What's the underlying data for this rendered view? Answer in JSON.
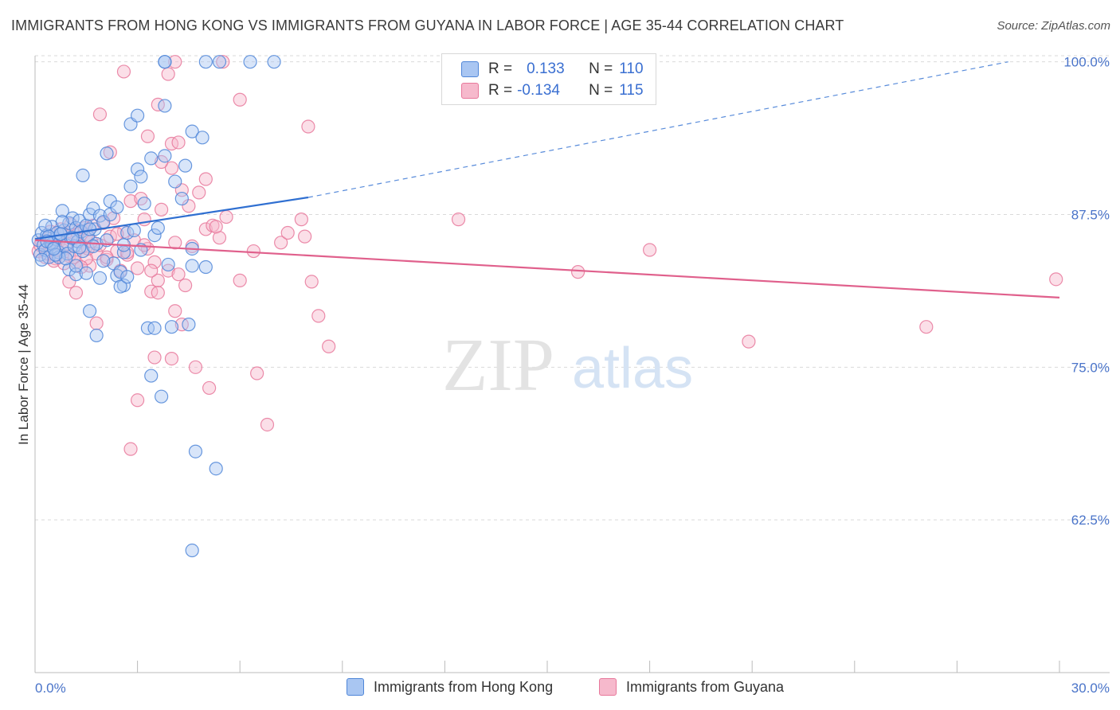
{
  "title": "IMMIGRANTS FROM HONG KONG VS IMMIGRANTS FROM GUYANA IN LABOR FORCE | AGE 35-44 CORRELATION CHART",
  "source": "Source: ZipAtlas.com",
  "watermark": {
    "zip": "ZIP",
    "atlas": "atlas"
  },
  "legend": {
    "r_label": "R =",
    "n_label": "N =",
    "hong_kong": {
      "r": "0.133",
      "n": "110"
    },
    "guyana": {
      "r": "-0.134",
      "n": "115"
    }
  },
  "colors": {
    "hong_kong_fill": "#a9c6f2",
    "hong_kong_stroke": "#4f86d8",
    "hong_kong_line": "#2f6fd1",
    "guyana_fill": "#f6b9cc",
    "guyana_stroke": "#e8789b",
    "guyana_line": "#e0608c",
    "grid": "#d9d9d9",
    "tick_text": "#4a74c9"
  },
  "chart_data": {
    "type": "scatter",
    "title": "IMMIGRANTS FROM HONG KONG VS IMMIGRANTS FROM GUYANA IN LABOR FORCE | AGE 35-44 CORRELATION CHART",
    "xlabel": "",
    "ylabel": "In Labor Force | Age 35-44",
    "xlim": [
      0,
      30
    ],
    "ylim": [
      50,
      100.5
    ],
    "x_tick_labels": [
      "0.0%",
      "30.0%"
    ],
    "y_ticks": [
      62.5,
      75.0,
      87.5,
      100.0
    ],
    "y_tick_labels": [
      "62.5%",
      "75.0%",
      "87.5%",
      "100.0%"
    ],
    "grid": true,
    "legend_position": "top-center",
    "series": [
      {
        "name": "Immigrants from Hong Kong",
        "r": 0.133,
        "n": 110,
        "trend": {
          "x0": 0,
          "y0": 85.5,
          "x1": 8,
          "y1": 88.9,
          "dashed_to_x": 28.5,
          "dashed_to_y": 100.0
        },
        "points": [
          [
            0.1,
            85.4
          ],
          [
            0.15,
            84.2
          ],
          [
            0.2,
            86.0
          ],
          [
            0.25,
            85.0
          ],
          [
            0.3,
            84.6
          ],
          [
            0.35,
            85.8
          ],
          [
            0.4,
            84.0
          ],
          [
            0.45,
            85.2
          ],
          [
            0.5,
            86.5
          ],
          [
            0.55,
            84.8
          ],
          [
            0.6,
            85.5
          ],
          [
            0.65,
            86.0
          ],
          [
            0.7,
            84.4
          ],
          [
            0.75,
            85.9
          ],
          [
            0.8,
            87.8
          ],
          [
            0.85,
            86.2
          ],
          [
            0.9,
            85.0
          ],
          [
            0.95,
            84.3
          ],
          [
            1.0,
            86.8
          ],
          [
            1.05,
            85.6
          ],
          [
            1.1,
            87.2
          ],
          [
            1.15,
            84.9
          ],
          [
            1.2,
            86.4
          ],
          [
            1.25,
            85.3
          ],
          [
            1.3,
            87.0
          ],
          [
            1.35,
            86.1
          ],
          [
            1.4,
            84.5
          ],
          [
            1.5,
            86.6
          ],
          [
            1.55,
            85.7
          ],
          [
            1.6,
            87.5
          ],
          [
            1.7,
            88.0
          ],
          [
            1.75,
            86.3
          ],
          [
            1.8,
            85.1
          ],
          [
            1.9,
            87.4
          ],
          [
            2.0,
            86.9
          ],
          [
            2.1,
            85.4
          ],
          [
            2.2,
            88.6
          ],
          [
            2.3,
            83.5
          ],
          [
            2.4,
            82.5
          ],
          [
            2.5,
            82.8
          ],
          [
            2.6,
            84.4
          ],
          [
            2.7,
            86.0
          ],
          [
            2.8,
            89.8
          ],
          [
            2.9,
            86.2
          ],
          [
            3.0,
            91.2
          ],
          [
            3.1,
            90.6
          ],
          [
            3.2,
            88.4
          ],
          [
            3.4,
            92.1
          ],
          [
            3.5,
            85.8
          ],
          [
            3.6,
            86.4
          ],
          [
            3.8,
            92.3
          ],
          [
            3.9,
            83.4
          ],
          [
            4.1,
            90.2
          ],
          [
            4.3,
            88.8
          ],
          [
            4.4,
            91.5
          ],
          [
            4.6,
            94.3
          ],
          [
            4.9,
            93.8
          ],
          [
            5.0,
            100.0
          ],
          [
            5.0,
            83.2
          ],
          [
            5.4,
            100.0
          ],
          [
            6.3,
            100.0
          ],
          [
            7.0,
            100.0
          ],
          [
            3.8,
            100.0
          ],
          [
            3.8,
            100.0
          ],
          [
            1.4,
            90.7
          ],
          [
            2.1,
            92.5
          ],
          [
            2.8,
            94.9
          ],
          [
            3.0,
            95.6
          ],
          [
            3.8,
            96.4
          ],
          [
            3.3,
            78.2
          ],
          [
            3.4,
            74.3
          ],
          [
            3.7,
            72.6
          ],
          [
            3.5,
            78.2
          ],
          [
            4.0,
            78.3
          ],
          [
            4.5,
            78.5
          ],
          [
            1.6,
            79.6
          ],
          [
            1.8,
            77.6
          ],
          [
            4.7,
            68.1
          ],
          [
            5.3,
            66.7
          ],
          [
            4.6,
            60.0
          ],
          [
            1.0,
            83.0
          ],
          [
            1.2,
            82.6
          ],
          [
            1.9,
            82.3
          ],
          [
            2.0,
            83.7
          ],
          [
            2.6,
            81.7
          ],
          [
            2.5,
            81.6
          ],
          [
            2.7,
            82.4
          ],
          [
            3.1,
            84.6
          ],
          [
            4.6,
            83.3
          ],
          [
            4.6,
            84.7
          ],
          [
            0.3,
            86.6
          ],
          [
            0.5,
            85.1
          ],
          [
            0.7,
            84.0
          ],
          [
            0.9,
            83.9
          ],
          [
            1.1,
            85.6
          ],
          [
            1.3,
            84.8
          ],
          [
            1.6,
            86.3
          ],
          [
            1.7,
            84.9
          ],
          [
            1.2,
            83.3
          ],
          [
            1.5,
            82.7
          ],
          [
            2.2,
            87.5
          ],
          [
            2.4,
            88.1
          ],
          [
            2.6,
            85.0
          ],
          [
            0.4,
            85.7
          ],
          [
            0.6,
            84.2
          ],
          [
            0.8,
            86.9
          ],
          [
            0.2,
            83.8
          ],
          [
            0.35,
            85.3
          ],
          [
            0.55,
            84.7
          ],
          [
            0.75,
            85.9
          ]
        ]
      },
      {
        "name": "Immigrants from Guyana",
        "r": -0.134,
        "n": 115,
        "trend": {
          "x0": 0,
          "y0": 85.4,
          "x1": 30,
          "y1": 80.7
        },
        "points": [
          [
            0.1,
            84.5
          ],
          [
            0.2,
            85.2
          ],
          [
            0.3,
            84.0
          ],
          [
            0.4,
            85.6
          ],
          [
            0.5,
            84.8
          ],
          [
            0.6,
            83.9
          ],
          [
            0.7,
            85.3
          ],
          [
            0.8,
            84.6
          ],
          [
            0.9,
            86.0
          ],
          [
            1.0,
            84.1
          ],
          [
            1.1,
            85.5
          ],
          [
            1.2,
            83.6
          ],
          [
            1.3,
            86.2
          ],
          [
            1.4,
            84.9
          ],
          [
            1.5,
            85.8
          ],
          [
            1.6,
            83.3
          ],
          [
            1.7,
            86.6
          ],
          [
            1.8,
            84.3
          ],
          [
            1.9,
            85.0
          ],
          [
            2.0,
            86.8
          ],
          [
            2.1,
            83.8
          ],
          [
            2.2,
            85.7
          ],
          [
            2.3,
            87.2
          ],
          [
            2.4,
            84.5
          ],
          [
            2.5,
            82.9
          ],
          [
            2.6,
            86.1
          ],
          [
            2.7,
            84.2
          ],
          [
            2.8,
            88.6
          ],
          [
            2.9,
            85.4
          ],
          [
            3.0,
            83.1
          ],
          [
            3.1,
            88.8
          ],
          [
            3.2,
            87.1
          ],
          [
            3.3,
            84.7
          ],
          [
            3.4,
            81.2
          ],
          [
            3.5,
            83.6
          ],
          [
            3.6,
            82.1
          ],
          [
            3.7,
            87.9
          ],
          [
            3.9,
            82.9
          ],
          [
            4.0,
            91.3
          ],
          [
            4.1,
            85.2
          ],
          [
            4.2,
            82.6
          ],
          [
            4.3,
            89.5
          ],
          [
            4.4,
            81.7
          ],
          [
            4.6,
            84.9
          ],
          [
            4.8,
            89.3
          ],
          [
            5.0,
            86.3
          ],
          [
            5.2,
            86.6
          ],
          [
            5.4,
            85.6
          ],
          [
            5.6,
            87.3
          ],
          [
            6.0,
            82.1
          ],
          [
            6.4,
            84.5
          ],
          [
            7.2,
            85.2
          ],
          [
            7.4,
            86.0
          ],
          [
            7.8,
            87.1
          ],
          [
            7.9,
            85.7
          ],
          [
            8.1,
            82.0
          ],
          [
            8.3,
            79.2
          ],
          [
            8.6,
            76.7
          ],
          [
            12.4,
            87.1
          ],
          [
            15.9,
            82.8
          ],
          [
            18.0,
            84.6
          ],
          [
            20.9,
            77.1
          ],
          [
            26.1,
            78.3
          ],
          [
            29.9,
            82.2
          ],
          [
            1.9,
            95.7
          ],
          [
            2.2,
            92.6
          ],
          [
            2.6,
            99.2
          ],
          [
            3.3,
            93.9
          ],
          [
            3.6,
            96.5
          ],
          [
            3.7,
            91.8
          ],
          [
            4.0,
            93.3
          ],
          [
            4.2,
            93.4
          ],
          [
            4.1,
            100.0
          ],
          [
            5.5,
            100.0
          ],
          [
            6.0,
            96.9
          ],
          [
            8.0,
            94.7
          ],
          [
            3.9,
            99.0
          ],
          [
            3.0,
            72.3
          ],
          [
            2.8,
            68.3
          ],
          [
            4.0,
            75.7
          ],
          [
            4.3,
            78.5
          ],
          [
            4.7,
            75.0
          ],
          [
            5.1,
            73.3
          ],
          [
            5.3,
            86.5
          ],
          [
            6.5,
            74.5
          ],
          [
            6.8,
            70.3
          ],
          [
            3.5,
            75.8
          ],
          [
            3.6,
            81.1
          ],
          [
            4.1,
            79.6
          ],
          [
            1.2,
            81.1
          ],
          [
            1.8,
            78.6
          ],
          [
            1.0,
            82.0
          ],
          [
            1.5,
            83.9
          ],
          [
            2.1,
            84.0
          ],
          [
            2.4,
            85.9
          ],
          [
            2.7,
            84.4
          ],
          [
            3.2,
            85.0
          ],
          [
            3.4,
            82.9
          ],
          [
            4.5,
            88.2
          ],
          [
            5.0,
            90.4
          ],
          [
            0.15,
            85.0
          ],
          [
            0.35,
            84.3
          ],
          [
            0.45,
            86.1
          ],
          [
            0.55,
            83.7
          ],
          [
            0.65,
            84.6
          ],
          [
            0.75,
            86.3
          ],
          [
            0.85,
            83.5
          ],
          [
            0.95,
            85.1
          ],
          [
            1.05,
            86.7
          ],
          [
            1.15,
            84.0
          ],
          [
            1.25,
            85.9
          ],
          [
            1.35,
            83.2
          ],
          [
            1.45,
            86.4
          ],
          [
            1.55,
            84.7
          ],
          [
            1.65,
            85.3
          ]
        ]
      }
    ]
  },
  "bottom_legend": {
    "hong_kong": "Immigrants from Hong Kong",
    "guyana": "Immigrants from Guyana"
  }
}
